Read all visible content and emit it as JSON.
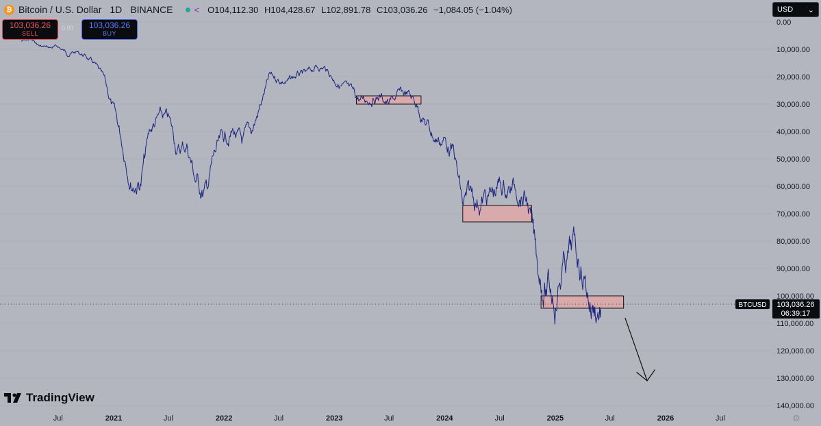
{
  "header": {
    "symbol": "Bitcoin / U.S. Dollar",
    "interval": "1D",
    "exchange": "BINANCE",
    "open_label": "O",
    "open": "104,112.30",
    "high_label": "H",
    "high": "104,428.67",
    "low_label": "L",
    "low": "102,891.78",
    "close_label": "C",
    "close": "103,036.26",
    "change": "−1,084.05 (−1.04%)"
  },
  "trade": {
    "sell_price": "103,036.26",
    "sell_label": "SELL",
    "spread": "0.00",
    "buy_price": "103,036.26",
    "buy_label": "BUY"
  },
  "currency": "USD",
  "branding": "TradingView",
  "colors": {
    "background": "#b4b6bf",
    "line": "#1a237e",
    "zone": "#e6a6a6",
    "zone_border": "#111111"
  },
  "chart_data": {
    "type": "line",
    "inverted_y": true,
    "y_ticks": [
      0,
      10000,
      20000,
      30000,
      40000,
      50000,
      60000,
      70000,
      80000,
      90000,
      100000,
      110000,
      120000,
      130000,
      140000
    ],
    "y_tick_labels": [
      "0.00",
      "10,000.00",
      "20,000.00",
      "30,000.00",
      "40,000.00",
      "50,000.00",
      "60,000.00",
      "70,000.00",
      "80,000.00",
      "90,000.00",
      "100,000.00",
      "110,000.00",
      "120,000.00",
      "130,000.00",
      "140,000.00"
    ],
    "x_ticks": [
      "2020-07-01",
      "2021-01-01",
      "2021-07-01",
      "2022-01-01",
      "2022-07-01",
      "2023-01-01",
      "2023-07-01",
      "2024-01-01",
      "2024-07-01",
      "2025-01-01",
      "2025-07-01",
      "2026-01-01",
      "2026-07-01"
    ],
    "x_tick_labels": [
      "Jul",
      "2021",
      "Jul",
      "2022",
      "Jul",
      "2023",
      "Jul",
      "2024",
      "Jul",
      "2025",
      "Jul",
      "2026",
      "Jul"
    ],
    "series": [
      {
        "x": [
          "2020-03-01",
          "2020-04-01",
          "2020-05-01",
          "2020-06-01",
          "2020-07-01",
          "2020-08-01",
          "2020-09-01",
          "2020-10-01",
          "2020-11-01",
          "2020-12-01",
          "2021-01-01",
          "2021-02-01",
          "2021-03-01",
          "2021-04-01",
          "2021-05-01",
          "2021-06-01",
          "2021-07-01",
          "2021-08-01",
          "2021-09-01",
          "2021-10-01",
          "2021-11-01",
          "2021-12-01",
          "2022-01-01",
          "2022-02-01",
          "2022-03-01",
          "2022-04-01",
          "2022-05-01",
          "2022-06-01",
          "2022-07-01",
          "2022-08-01",
          "2022-09-01",
          "2022-10-01",
          "2022-11-01",
          "2022-12-01",
          "2023-01-01",
          "2023-02-01",
          "2023-03-01",
          "2023-04-01",
          "2023-05-01",
          "2023-06-01",
          "2023-07-01",
          "2023-08-01",
          "2023-09-01",
          "2023-10-01",
          "2023-11-01",
          "2023-12-01",
          "2024-01-01",
          "2024-02-01",
          "2024-03-01",
          "2024-04-01",
          "2024-05-01",
          "2024-06-01",
          "2024-07-01",
          "2024-08-01",
          "2024-09-01",
          "2024-10-01",
          "2024-11-01",
          "2024-12-01",
          "2025-01-01",
          "2025-02-01",
          "2025-03-01",
          "2025-04-01",
          "2025-05-01",
          "2025-06-01"
        ],
        "values": [
          7000,
          6500,
          8800,
          9500,
          9200,
          11500,
          11000,
          12500,
          16000,
          22000,
          33000,
          45000,
          57000,
          58000,
          40000,
          35000,
          36000,
          47000,
          45000,
          58000,
          63000,
          49000,
          43000,
          40000,
          45000,
          41000,
          31000,
          20000,
          21000,
          22000,
          19500,
          19500,
          16500,
          16800,
          21000,
          23500,
          27000,
          29000,
          27500,
          27000,
          30000,
          27000,
          26500,
          30000,
          37000,
          42500,
          43000,
          48000,
          68000,
          64000,
          65000,
          64000,
          60000,
          61000,
          60000,
          65000,
          88000,
          97000,
          99000,
          88000,
          83000,
          90000,
          103000,
          104000
        ]
      }
    ],
    "zones": [
      {
        "x_start": "2023-03-15",
        "x_end": "2023-10-15",
        "y_low": 27000,
        "y_high": 30000
      },
      {
        "x_start": "2024-03-01",
        "x_end": "2024-10-15",
        "y_low": 67000,
        "y_high": 73000
      },
      {
        "x_start": "2024-11-15",
        "x_end": "2025-08-15",
        "y_low": 100000,
        "y_high": 104500
      }
    ],
    "arrow": {
      "x_start": "2025-08-20",
      "y_start": 108000,
      "x_end": "2025-11-01",
      "y_end": 131000
    },
    "current_price": {
      "value": 103036.26,
      "label": "103,036.26",
      "symbol": "BTCUSD",
      "countdown": "06:39:17"
    }
  }
}
